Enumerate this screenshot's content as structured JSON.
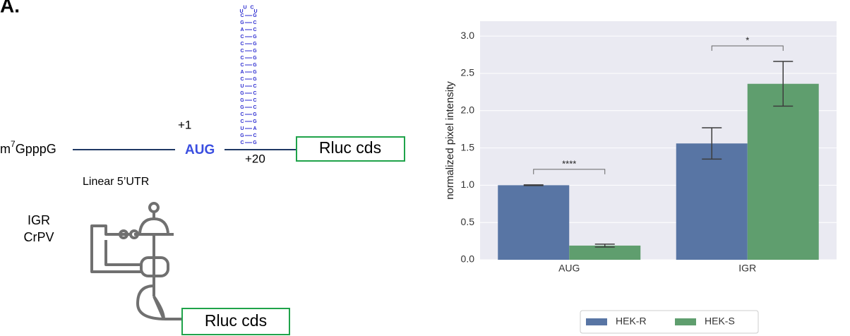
{
  "panel_label": "A.",
  "diagram": {
    "cap_prefix": "m",
    "cap_superscript": "7",
    "cap_suffix": "GpppG",
    "start_position": "+1",
    "start_codon": "AUG",
    "hairpin_position": "+20",
    "reporter_top": "Rluc cds",
    "utr_label": "Linear 5’UTR",
    "ires_label_1": "IGR",
    "ires_label_2": "CrPV",
    "reporter_bottom": "Rluc cds",
    "hairpin_loop": [
      "U",
      "U",
      "C",
      "U"
    ],
    "hairpin_pairs": [
      [
        "C",
        "G"
      ],
      [
        "G",
        "C"
      ],
      [
        "A",
        "C"
      ],
      [
        "C",
        "G"
      ],
      [
        "C",
        "G"
      ],
      [
        "C",
        "G"
      ],
      [
        "C",
        "G"
      ],
      [
        "C",
        "G"
      ],
      [
        "A",
        "G"
      ],
      [
        "C",
        "G"
      ],
      [
        "U",
        "C"
      ],
      [
        "G",
        "C"
      ],
      [
        "G",
        "C"
      ],
      [
        "G",
        "C"
      ],
      [
        "C",
        "G"
      ],
      [
        "C",
        "G"
      ],
      [
        "U",
        "A"
      ],
      [
        "G",
        "C"
      ],
      [
        "C",
        "G"
      ]
    ]
  },
  "chart_data": {
    "type": "bar",
    "y_label": "normalized pixel intensity",
    "categories": [
      "AUG",
      "IGR"
    ],
    "series": [
      {
        "name": "HEK-R",
        "color": "#5875a4",
        "values": [
          1.0,
          1.56
        ],
        "errors": [
          0.005,
          0.21
        ]
      },
      {
        "name": "HEK-S",
        "color": "#5f9e6e",
        "values": [
          0.19,
          2.36
        ],
        "errors": [
          0.02,
          0.3
        ]
      }
    ],
    "significance": [
      "****",
      "*"
    ],
    "ylim": [
      0,
      3.2
    ],
    "yticks": [
      {
        "value": 0,
        "label": "0.0"
      },
      {
        "value": 0.5,
        "label": "0.5"
      },
      {
        "value": 1,
        "label": "1.0"
      },
      {
        "value": 1.5,
        "label": "1.5"
      },
      {
        "value": 2,
        "label": "2.0"
      },
      {
        "value": 2.5,
        "label": "2.5"
      },
      {
        "value": 3,
        "label": "3.0"
      }
    ],
    "grid": true,
    "legend": "bottom"
  }
}
